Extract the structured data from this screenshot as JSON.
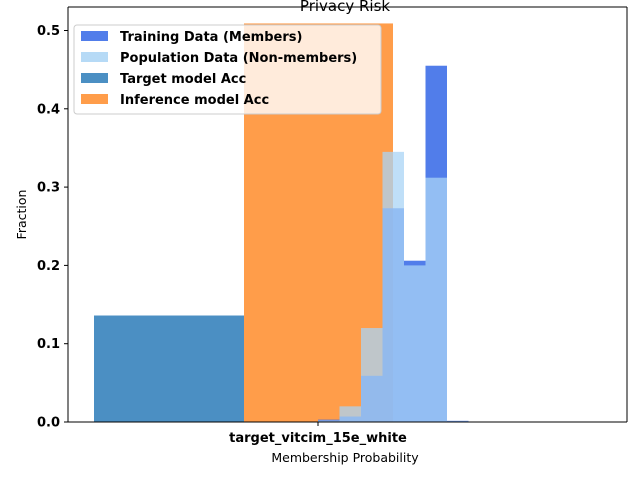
{
  "chart_data": {
    "type": "bar",
    "title": "Privacy Risk",
    "xlabel": "Membership Probability",
    "ylabel": "Fraction",
    "xtick_labels": [
      "target_vitcim_15e_white"
    ],
    "ylim": [
      0,
      0.53
    ],
    "yticks": [
      0.0,
      0.1,
      0.2,
      0.3,
      0.4,
      0.5
    ],
    "ytick_labels": [
      "0.0",
      "0.1",
      "0.2",
      "0.3",
      "0.4",
      "0.5"
    ],
    "grid": false,
    "legend_position": "top-left",
    "summary_bars": [
      {
        "name": "Target model Acc",
        "value": 0.136,
        "color": "#2b7bb9",
        "opacity": 0.85
      },
      {
        "name": "Inference model Acc",
        "value": 0.509,
        "color": "#ff8c2a",
        "opacity": 0.85
      }
    ],
    "histogram_bin_edges": [
      0.0,
      0.1,
      0.2,
      0.3,
      0.4,
      0.5,
      0.6,
      0.7,
      0.8,
      0.9,
      1.0
    ],
    "series": [
      {
        "name": "Training Data (Members)",
        "color": "#3366e6",
        "opacity": 0.85,
        "values": [
          0.0,
          0.0,
          0.003,
          0.007,
          0.059,
          0.273,
          0.206,
          0.455,
          0.0015,
          0.0
        ]
      },
      {
        "name": "Population Data (Non-members)",
        "color": "#a9d4f5",
        "opacity": 0.75,
        "values": [
          0.0,
          0.0,
          0.002,
          0.02,
          0.12,
          0.345,
          0.2,
          0.312,
          0.001,
          0.0
        ]
      }
    ]
  }
}
